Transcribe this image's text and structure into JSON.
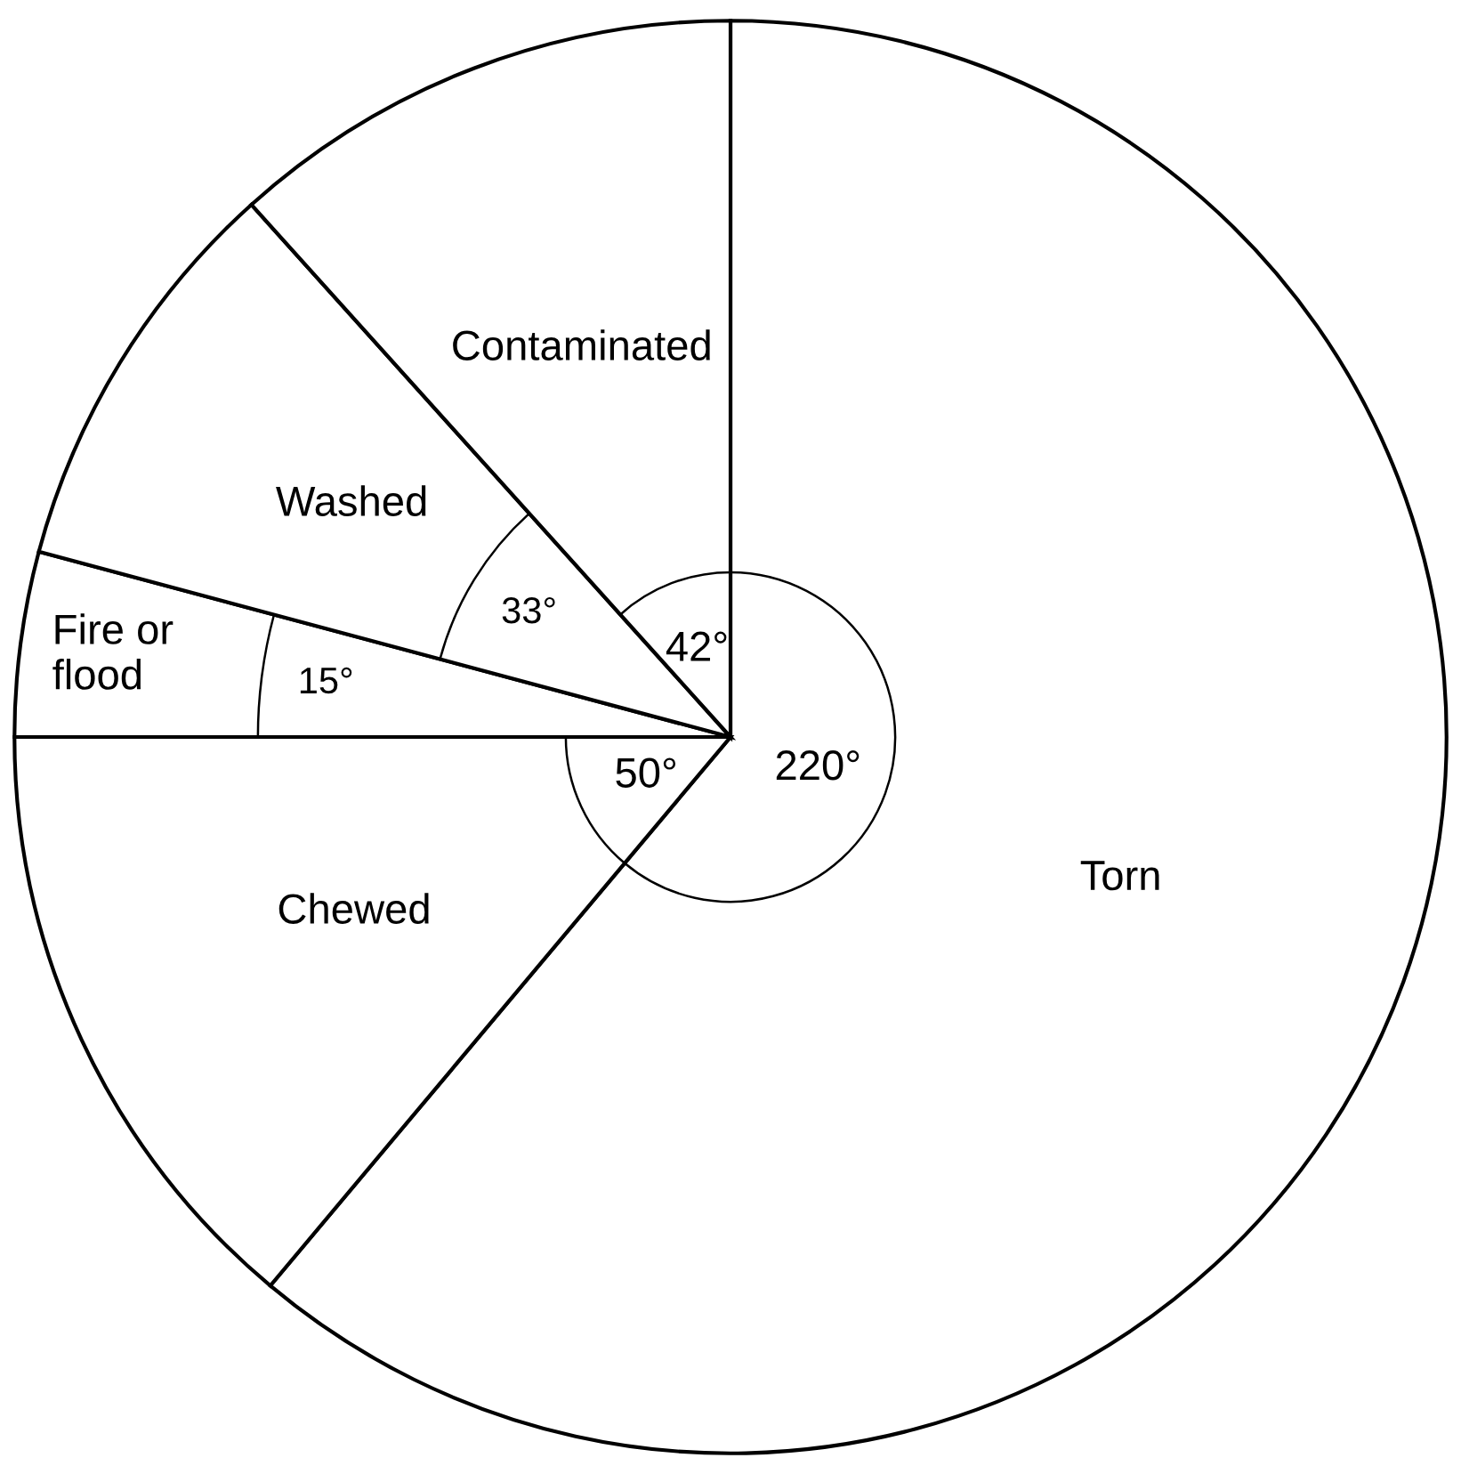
{
  "chart_data": {
    "type": "pie",
    "categories": [
      "Torn",
      "Chewed",
      "Fire or flood",
      "Washed",
      "Contaminated"
    ],
    "values": [
      220,
      50,
      15,
      33,
      42
    ],
    "value_labels": [
      "220°",
      "50°",
      "15°",
      "33°",
      "42°"
    ],
    "colors": [
      "#ffffff",
      "#ffffff",
      "#ffffff",
      "#ffffff",
      "#ffffff"
    ],
    "legend": false
  }
}
